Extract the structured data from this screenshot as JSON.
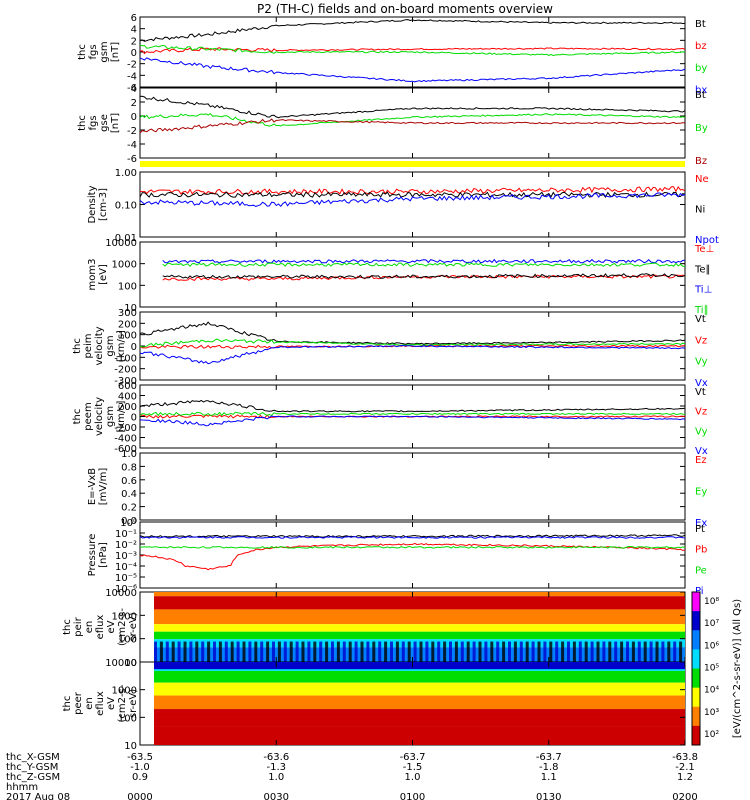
{
  "chart_data": {
    "type": "line",
    "title": "P2 (TH-C) fields and on-board moments overview",
    "date": "2017 Aug 08",
    "x_axis": {
      "label": "hhmm",
      "ticks": [
        "0000",
        "0030",
        "0100",
        "0130",
        "0200"
      ],
      "extra_rows": [
        {
          "label": "thc_X-GSM",
          "values": [
            "-63.5",
            "-63.6",
            "-63.7",
            "-63.7",
            "-63.8"
          ]
        },
        {
          "label": "thc_Y-GSM",
          "values": [
            "-1.0",
            "-1.3",
            "-1.5",
            "-1.8",
            "-2.1"
          ]
        },
        {
          "label": "thc_Z-GSM",
          "values": [
            "0.9",
            "1.0",
            "1.0",
            "1.1",
            "1.2"
          ]
        }
      ]
    },
    "panels": [
      {
        "ylabel": [
          "thc",
          "fgs",
          "gsm",
          "[nT]"
        ],
        "ytick_labels": [
          "6",
          "4",
          "2",
          "0",
          "-2",
          "-4",
          "-6"
        ],
        "ylim": [
          -6,
          6
        ],
        "scale": "linear",
        "series": [
          {
            "name": "Bt",
            "color": "#000000",
            "x": [
              0,
              15,
              30,
              60,
              90,
              120
            ],
            "values": [
              2,
              3,
              4.5,
              5.5,
              5,
              5
            ]
          },
          {
            "name": "bz",
            "color": "#ff0000",
            "x": [
              0,
              15,
              30,
              60,
              90,
              120
            ],
            "values": [
              0,
              0.5,
              0.3,
              0.5,
              0.6,
              0.5
            ]
          },
          {
            "name": "by",
            "color": "#00dd00",
            "x": [
              0,
              15,
              30,
              60,
              90,
              120
            ],
            "values": [
              1,
              0.5,
              0,
              0,
              -0.5,
              0
            ]
          },
          {
            "name": "bx",
            "color": "#0000ff",
            "x": [
              0,
              15,
              30,
              60,
              90,
              120
            ],
            "values": [
              -1,
              -2.5,
              -3.5,
              -5,
              -4.5,
              -3
            ]
          }
        ],
        "legend_pos": "right"
      },
      {
        "ylabel": [
          "thc",
          "fgs",
          "gse",
          "[nT]"
        ],
        "ytick_labels": [
          "4",
          "2",
          "0",
          "-2",
          "-4",
          "-6"
        ],
        "ylim": [
          -7,
          5
        ],
        "scale": "linear",
        "series": [
          {
            "name": "Bt",
            "color": "#000000",
            "x": [
              0,
              15,
              30,
              60,
              90,
              120
            ],
            "values": [
              3.5,
              2,
              0,
              1.5,
              1.5,
              1
            ]
          },
          {
            "name": "By",
            "color": "#00dd00",
            "x": [
              0,
              15,
              30,
              60,
              90,
              120
            ],
            "values": [
              0,
              0.5,
              -1.5,
              0,
              0.5,
              0
            ]
          },
          {
            "name": "Bz",
            "color": "#aa0000",
            "x": [
              0,
              15,
              30,
              60,
              90,
              120
            ],
            "values": [
              -2.5,
              -1.5,
              -0.5,
              -1,
              -1,
              -1
            ]
          }
        ]
      },
      {
        "ylabel": [
          "Density",
          "[cm-3]"
        ],
        "ytick_labels": [
          "1.00",
          "0.10",
          "0.01"
        ],
        "ylim": [
          0.01,
          1
        ],
        "scale": "log",
        "series": [
          {
            "name": "Ne",
            "color": "#ff0000",
            "x": [
              0,
              60,
              120
            ],
            "values": [
              0.25,
              0.25,
              0.3
            ]
          },
          {
            "name": "Ni",
            "color": "#000000",
            "x": [
              0,
              60,
              120
            ],
            "values": [
              0.2,
              0.2,
              0.2
            ]
          },
          {
            "name": "Npot",
            "color": "#0000ff",
            "x": [
              0,
              30,
              60,
              120
            ],
            "values": [
              0.12,
              0.1,
              0.15,
              0.2
            ]
          }
        ]
      },
      {
        "ylabel": [
          "mom3",
          "[eV]"
        ],
        "ytick_labels": [
          "10000",
          "1000",
          "100",
          "10"
        ],
        "ylim": [
          10,
          10000
        ],
        "scale": "log",
        "series": [
          {
            "name": "Te⊥",
            "color": "#ff0000",
            "x": [
              5,
              30,
              60,
              120
            ],
            "values": [
              200,
              200,
              250,
              250
            ]
          },
          {
            "name": "Te∥",
            "color": "#000000",
            "x": [
              5,
              30,
              60,
              120
            ],
            "values": [
              250,
              250,
              250,
              300
            ]
          },
          {
            "name": "Ti⊥",
            "color": "#0000ff",
            "x": [
              5,
              30,
              60,
              120
            ],
            "values": [
              1200,
              1300,
              1300,
              1300
            ]
          },
          {
            "name": "Ti∥",
            "color": "#00dd00",
            "x": [
              5,
              30,
              60,
              120
            ],
            "values": [
              900,
              900,
              900,
              900
            ]
          }
        ]
      },
      {
        "ylabel": [
          "thc",
          "peim",
          "velocity",
          "gsm",
          "[km/s]"
        ],
        "ytick_labels": [
          "300",
          "200",
          "100",
          "0",
          "-100",
          "-200",
          "-300"
        ],
        "ylim": [
          -300,
          300
        ],
        "scale": "linear",
        "series": [
          {
            "name": "Vt",
            "color": "#000000",
            "x": [
              0,
              15,
              30,
              60,
              90,
              120
            ],
            "values": [
              100,
              200,
              40,
              20,
              30,
              50
            ]
          },
          {
            "name": "Vz",
            "color": "#ff0000",
            "x": [
              0,
              60,
              120
            ],
            "values": [
              -10,
              0,
              0
            ]
          },
          {
            "name": "Vy",
            "color": "#00dd00",
            "x": [
              0,
              15,
              60,
              120
            ],
            "values": [
              0,
              50,
              10,
              20
            ]
          },
          {
            "name": "Vx",
            "color": "#0000ff",
            "x": [
              0,
              15,
              30,
              60,
              120
            ],
            "values": [
              -50,
              -150,
              -10,
              0,
              -20
            ]
          }
        ]
      },
      {
        "ylabel": [
          "thc",
          "peem",
          "velocity",
          "gsm",
          "[km/s]"
        ],
        "ytick_labels": [
          "600",
          "400",
          "200",
          "0",
          "-200",
          "-400",
          "-600"
        ],
        "ylim": [
          -600,
          600
        ],
        "scale": "linear",
        "series": [
          {
            "name": "Vt",
            "color": "#000000",
            "x": [
              0,
              15,
              30,
              60,
              120
            ],
            "values": [
              200,
              300,
              100,
              100,
              150
            ]
          },
          {
            "name": "Vz",
            "color": "#ff0000",
            "x": [
              0,
              60,
              120
            ],
            "values": [
              0,
              0,
              0
            ]
          },
          {
            "name": "Vy",
            "color": "#00dd00",
            "x": [
              0,
              60,
              120
            ],
            "values": [
              50,
              50,
              50
            ]
          },
          {
            "name": "Vx",
            "color": "#0000ff",
            "x": [
              0,
              15,
              30,
              60,
              120
            ],
            "values": [
              -50,
              -150,
              0,
              0,
              -50
            ]
          }
        ]
      },
      {
        "ylabel": [
          "E=-VxB",
          "[mV/m]"
        ],
        "ytick_labels": [
          "1.0",
          "0.8",
          "0.6",
          "0.4",
          "0.2",
          "0.0"
        ],
        "ylim": [
          0,
          1
        ],
        "scale": "linear",
        "series": [
          {
            "name": "Ez",
            "color": "#ff0000",
            "x": [],
            "values": []
          },
          {
            "name": "Ey",
            "color": "#00dd00",
            "x": [],
            "values": []
          },
          {
            "name": "Ex",
            "color": "#0000ff",
            "x": [],
            "values": []
          }
        ]
      },
      {
        "ylabel": [
          "Pressure",
          "[nPa]"
        ],
        "ytick_labels": [
          "10⁰",
          "10⁻¹",
          "10⁻²",
          "10⁻³",
          "10⁻⁴",
          "10⁻⁵",
          "10⁻⁶"
        ],
        "ylim": [
          1e-06,
          1
        ],
        "scale": "log",
        "series": [
          {
            "name": "Pt",
            "color": "#000000",
            "x": [
              0,
              60,
              120
            ],
            "values": [
              0.05,
              0.05,
              0.06
            ]
          },
          {
            "name": "Pb",
            "color": "#ff0000",
            "x": [
              0,
              10,
              15,
              20,
              30,
              60,
              120
            ],
            "values": [
              0.001,
              0.0001,
              5e-05,
              0.0001,
              0.005,
              0.01,
              0.003
            ]
          },
          {
            "name": "Pe",
            "color": "#00dd00",
            "x": [
              0,
              60,
              120
            ],
            "values": [
              0.005,
              0.005,
              0.005
            ]
          },
          {
            "name": "Pi",
            "color": "#0000ff",
            "x": [
              0,
              60,
              120
            ],
            "values": [
              0.04,
              0.04,
              0.04
            ]
          }
        ]
      },
      {
        "type": "heatmap",
        "ylabel": [
          "thc",
          "peir",
          "en",
          "eflux",
          "eV",
          "(cm2-s-",
          "sr-eV)"
        ],
        "ytick_labels": [
          "10000",
          "1000",
          "100",
          "10"
        ],
        "ylim": [
          5,
          25000
        ],
        "scale": "log"
      },
      {
        "type": "heatmap",
        "ylabel": [
          "thc",
          "peer",
          "en",
          "eflux",
          "eV",
          "(cm2-s-",
          "sr-eV)"
        ],
        "ytick_labels": [
          "10000",
          "1000",
          "100",
          "10"
        ],
        "ylim": [
          5,
          25000
        ],
        "scale": "log"
      }
    ],
    "colorbar": {
      "label": "[eV/(cm^2-s-sr-eV)] (All Qs)",
      "tick_labels": [
        "10⁸",
        "10⁷",
        "10⁶",
        "10⁵",
        "10⁴",
        "10³",
        "10²"
      ],
      "colors": [
        "#ff00ff",
        "#0000cc",
        "#0080ff",
        "#00ddff",
        "#00dd00",
        "#ffff00",
        "#ff8000",
        "#cc0000"
      ]
    }
  }
}
